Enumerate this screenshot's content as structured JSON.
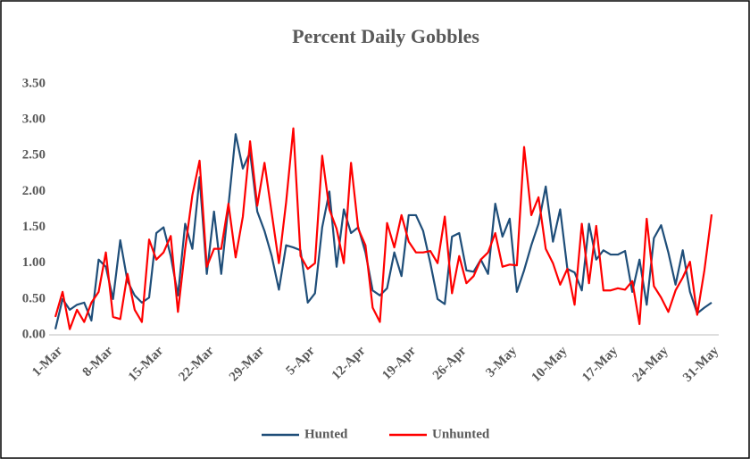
{
  "chart_data": {
    "type": "line",
    "title": "Percent Daily Gobbles",
    "categories": [
      "1-Mar",
      null,
      null,
      null,
      null,
      null,
      null,
      "8-Mar",
      null,
      null,
      null,
      null,
      null,
      null,
      "15-Mar",
      null,
      null,
      null,
      null,
      null,
      null,
      "22-Mar",
      null,
      null,
      null,
      null,
      null,
      null,
      "29-Mar",
      null,
      null,
      null,
      null,
      null,
      null,
      "5-Apr",
      null,
      null,
      null,
      null,
      null,
      null,
      "12-Apr",
      null,
      null,
      null,
      null,
      null,
      null,
      "19-Apr",
      null,
      null,
      null,
      null,
      null,
      null,
      "26-Apr",
      null,
      null,
      null,
      null,
      null,
      null,
      "3-May",
      null,
      null,
      null,
      null,
      null,
      null,
      "10-May",
      null,
      null,
      null,
      null,
      null,
      null,
      "17-May",
      null,
      null,
      null,
      null,
      null,
      null,
      "24-May",
      null,
      null,
      null,
      null,
      null,
      null,
      "31-May"
    ],
    "series": [
      {
        "name": "Hunted",
        "color": "#1f4e79",
        "values": [
          0.08,
          0.5,
          0.35,
          0.42,
          0.45,
          0.2,
          1.05,
          0.95,
          0.5,
          1.32,
          0.75,
          0.55,
          0.45,
          0.52,
          1.42,
          1.5,
          1.1,
          0.55,
          1.55,
          1.2,
          2.2,
          0.85,
          1.72,
          0.85,
          1.8,
          2.8,
          2.32,
          2.55,
          1.72,
          1.45,
          1.1,
          0.63,
          1.25,
          1.22,
          1.18,
          0.45,
          0.58,
          1.5,
          2.0,
          0.95,
          1.75,
          1.42,
          1.5,
          1.15,
          0.62,
          0.55,
          0.65,
          1.15,
          0.82,
          1.67,
          1.67,
          1.45,
          1.0,
          0.5,
          0.43,
          1.37,
          1.42,
          0.9,
          0.88,
          1.05,
          0.85,
          1.83,
          1.37,
          1.62,
          0.6,
          0.9,
          1.25,
          1.55,
          2.07,
          1.3,
          1.75,
          0.92,
          0.87,
          0.62,
          1.55,
          1.05,
          1.18,
          1.12,
          1.12,
          1.17,
          0.6,
          1.05,
          0.42,
          1.35,
          1.53,
          1.15,
          0.7,
          1.18,
          0.6,
          0.3,
          0.38,
          0.45
        ]
      },
      {
        "name": "Unhunted",
        "color": "#ff0000",
        "values": [
          0.25,
          0.6,
          0.08,
          0.35,
          0.18,
          0.45,
          0.6,
          1.15,
          0.25,
          0.22,
          0.85,
          0.35,
          0.18,
          1.33,
          1.05,
          1.15,
          1.38,
          0.32,
          1.2,
          1.95,
          2.43,
          0.95,
          1.2,
          1.2,
          1.83,
          1.08,
          1.65,
          2.7,
          1.8,
          2.4,
          1.7,
          1.0,
          1.85,
          2.88,
          1.1,
          0.92,
          1.0,
          2.5,
          1.75,
          1.48,
          1.0,
          2.4,
          1.48,
          1.25,
          0.38,
          0.18,
          1.56,
          1.22,
          1.67,
          1.3,
          1.15,
          1.15,
          1.17,
          1.0,
          1.65,
          0.58,
          1.1,
          0.72,
          0.82,
          1.05,
          1.15,
          1.42,
          0.95,
          0.98,
          0.97,
          2.62,
          1.67,
          1.92,
          1.2,
          1.0,
          0.7,
          0.92,
          0.42,
          1.55,
          0.72,
          1.52,
          0.62,
          0.62,
          0.65,
          0.63,
          0.75,
          0.15,
          1.62,
          0.68,
          0.52,
          0.32,
          0.62,
          0.8,
          1.02,
          0.28,
          0.9,
          1.68
        ]
      }
    ],
    "ylim": [
      0,
      3.5
    ],
    "yticks": [
      {
        "value": 0,
        "label": "0.00"
      },
      {
        "value": 0.5,
        "label": "0.50"
      },
      {
        "value": 1,
        "label": "1.00"
      },
      {
        "value": 1.5,
        "label": "1.50"
      },
      {
        "value": 2,
        "label": "2.00"
      },
      {
        "value": 2.5,
        "label": "2.50"
      },
      {
        "value": 3,
        "label": "3.00"
      },
      {
        "value": 3.5,
        "label": "3.50"
      }
    ],
    "grid": false,
    "legend": "bottom"
  }
}
